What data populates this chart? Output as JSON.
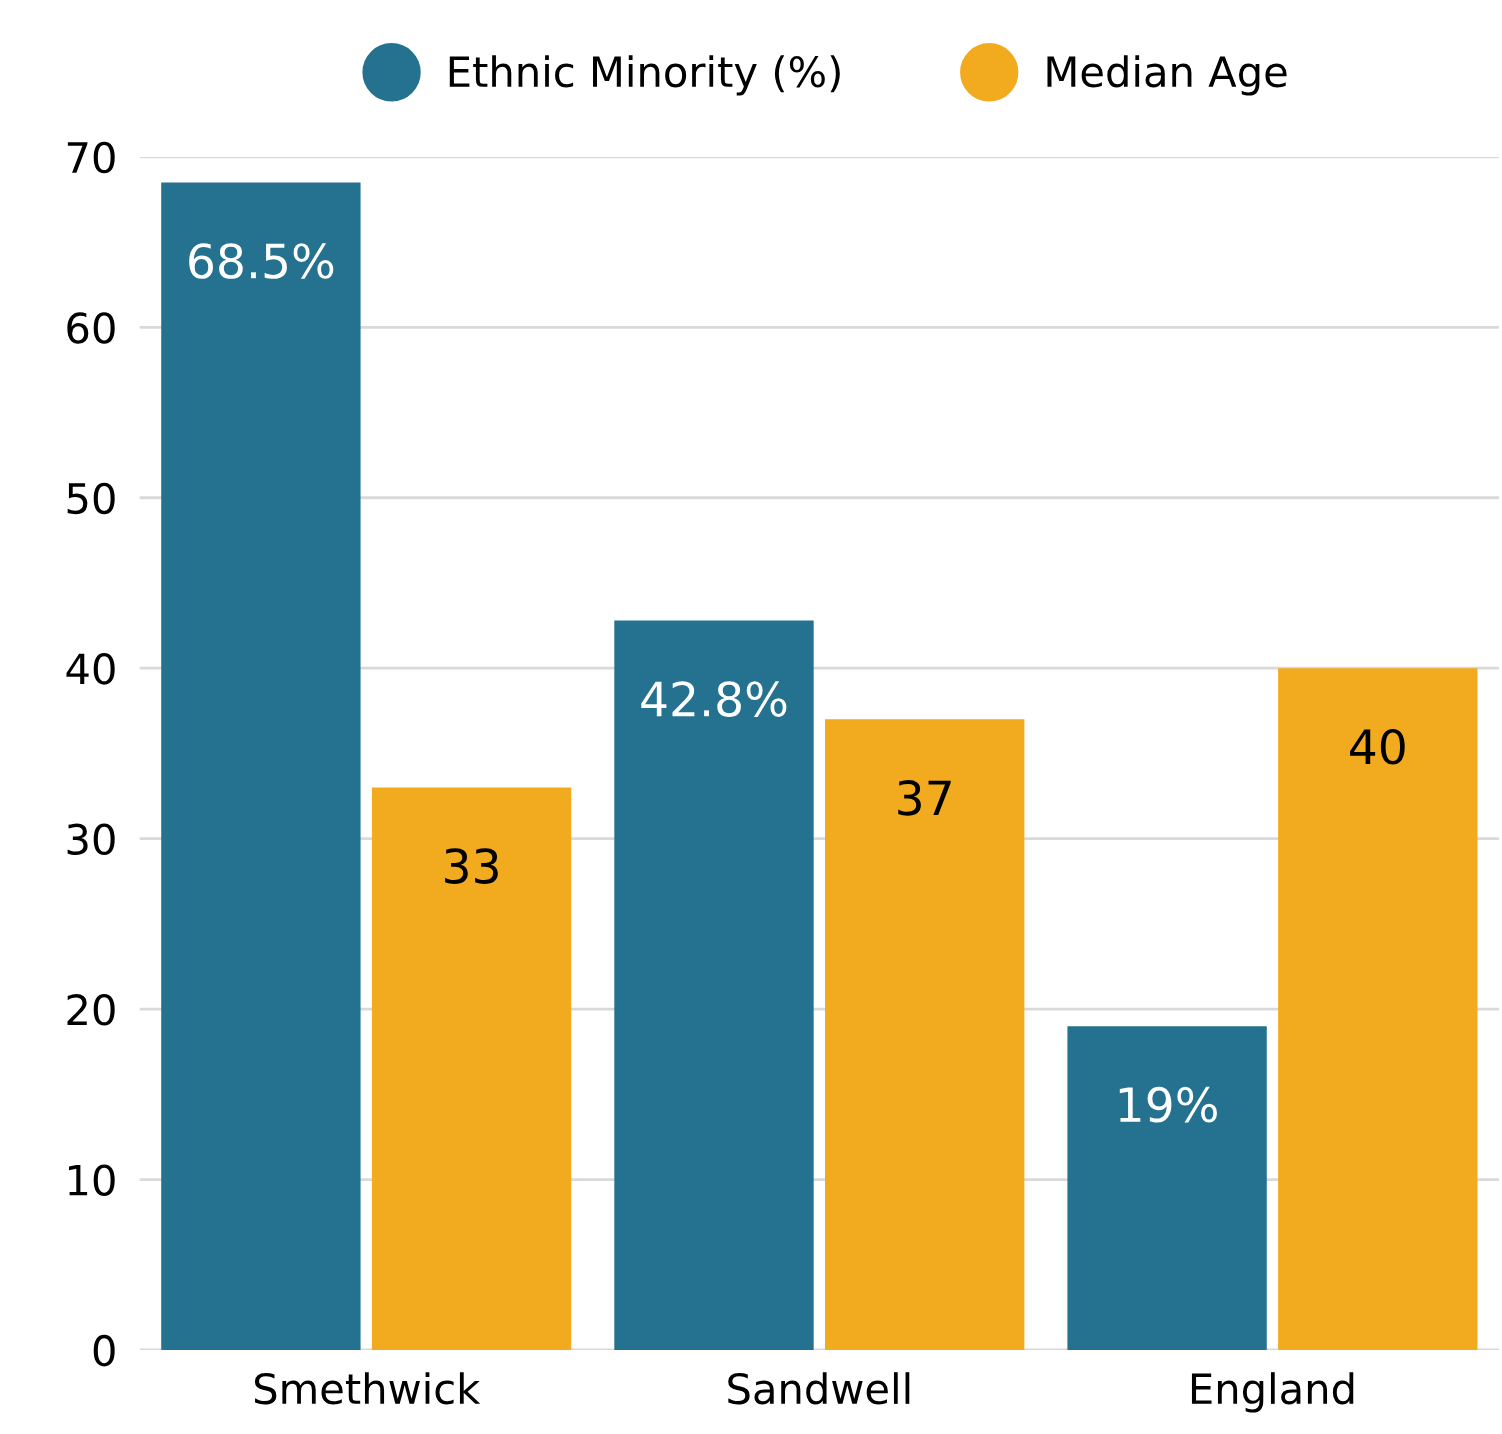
{
  "chart_data": {
    "type": "bar",
    "categories": [
      "Smethwick",
      "Sandwell",
      "England"
    ],
    "series": [
      {
        "name": "Ethnic Minority (%)",
        "color": "#24728f",
        "values": [
          68.5,
          42.8,
          19
        ],
        "value_labels": [
          "68.5%",
          "42.8%",
          "19%"
        ]
      },
      {
        "name": "Median Age",
        "color": "#f2aa1f",
        "values": [
          33,
          37,
          40
        ],
        "value_labels": [
          "33",
          "37",
          "40"
        ]
      }
    ],
    "ylim": [
      0,
      70
    ],
    "yticks": [
      0,
      10,
      20,
      30,
      40,
      50,
      60,
      70
    ],
    "grid": "y",
    "legend": "top"
  }
}
